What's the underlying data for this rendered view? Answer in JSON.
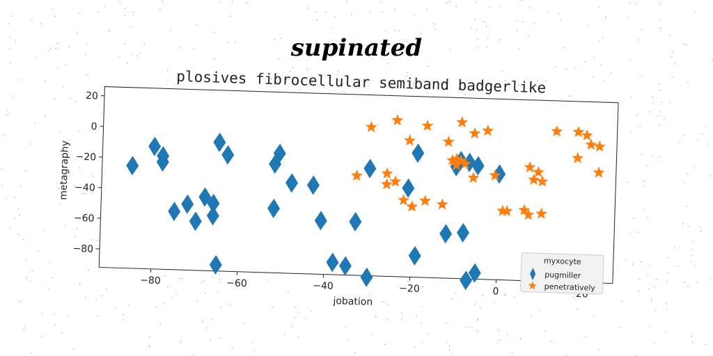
{
  "suptitle": "supinated",
  "chart_data": {
    "type": "scatter",
    "title": "plosives fibrocellular semiband badgerlike",
    "xlabel": "jobation",
    "ylabel": "metagraphy",
    "xlim": [
      -92,
      27
    ],
    "ylim": [
      -92,
      26
    ],
    "xticks": [
      -80,
      -60,
      -40,
      -20,
      0,
      20
    ],
    "yticks": [
      20,
      0,
      -20,
      -40,
      -60,
      -80
    ],
    "grid": false,
    "legend": {
      "title": "myxocyte",
      "placement": "lower-right"
    },
    "series": [
      {
        "name": "pugmiller",
        "marker": "thin-diamond",
        "color": "#1f77b4",
        "x": [
          -85,
          -80,
          -78,
          -78,
          -65,
          -63,
          -51,
          -52,
          -48,
          -43,
          -52,
          -41,
          -75,
          -72,
          -70,
          -68,
          -66,
          -66,
          -65,
          -38,
          -35,
          -33,
          -30,
          -30,
          -21,
          -19,
          -19,
          -12,
          -10,
          -9,
          -8,
          -7,
          -5,
          0,
          -5,
          -7
        ],
        "y": [
          -25,
          -12,
          -18,
          -22,
          -8,
          -16,
          -14,
          -21,
          -33,
          -34,
          -50,
          -57,
          -54,
          -49,
          -60,
          -44,
          -48,
          -56,
          -88,
          -84,
          -86,
          -57,
          -22,
          -93,
          -34,
          -11,
          -78,
          -63,
          -19,
          -15,
          -62,
          -93,
          -88,
          -23,
          -18,
          -16
        ]
      },
      {
        "name": "penetratively",
        "marker": "star",
        "color": "#ff7f0e",
        "x": [
          -30,
          -24,
          -21,
          -17,
          -12,
          -9,
          -6,
          -3,
          13,
          18,
          20,
          21,
          23,
          -33,
          -26,
          -26,
          -24,
          -22,
          -20,
          -17,
          -13,
          -10,
          -10,
          -9,
          -8,
          -6,
          -1,
          1,
          2,
          6,
          7,
          7,
          8,
          9,
          10,
          10,
          18,
          23,
          -11
        ],
        "y": [
          5,
          10,
          -3,
          7,
          -3,
          10,
          3,
          5,
          6,
          6,
          4,
          -2,
          -3,
          -27,
          -25,
          -32,
          -30,
          -42,
          -46,
          -42,
          -44,
          -14,
          -18,
          -15,
          -17,
          -26,
          -24,
          -47,
          -47,
          -46,
          -49,
          -18,
          -26,
          -21,
          -27,
          -48,
          -11,
          -20,
          -15
        ]
      }
    ]
  }
}
